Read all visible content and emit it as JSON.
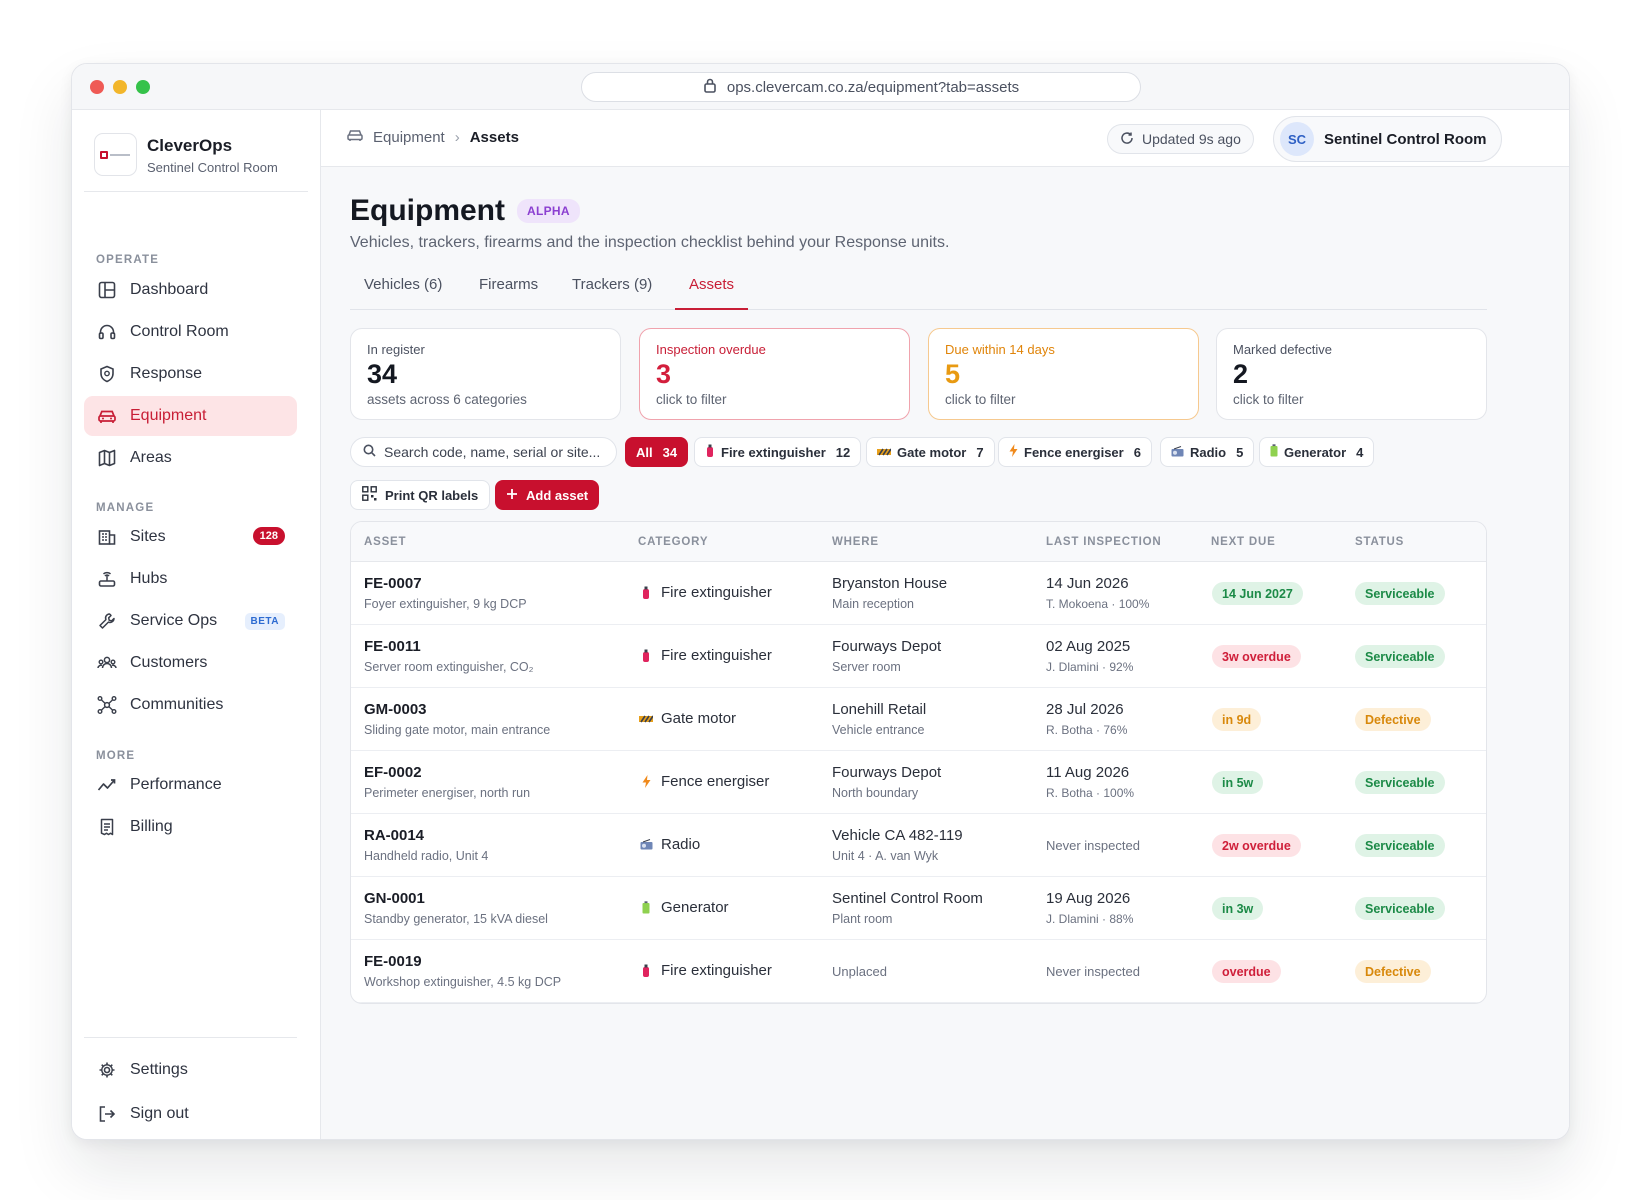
{
  "browser": {
    "url": "ops.clevercam.co.za/equipment?tab=assets"
  },
  "brand": {
    "name": "CleverOps",
    "subtitle": "Sentinel Control Room"
  },
  "sidebar": {
    "sections": {
      "operate": "OPERATE",
      "manage": "MANAGE",
      "more": "MORE"
    },
    "items": [
      {
        "label": "Dashboard",
        "icon": "dashboard-icon"
      },
      {
        "label": "Control Room",
        "icon": "headset-icon"
      },
      {
        "label": "Response",
        "icon": "shield-icon"
      },
      {
        "label": "Equipment",
        "icon": "car-icon",
        "active": true
      },
      {
        "label": "Areas",
        "icon": "map-icon"
      },
      {
        "label": "Sites",
        "icon": "building-icon",
        "count": "128"
      },
      {
        "label": "Hubs",
        "icon": "router-icon"
      },
      {
        "label": "Service Ops",
        "icon": "wrench-icon",
        "badge": "BETA"
      },
      {
        "label": "Customers",
        "icon": "users-icon"
      },
      {
        "label": "Communities",
        "icon": "network-icon"
      },
      {
        "label": "Performance",
        "icon": "trend-icon"
      },
      {
        "label": "Billing",
        "icon": "receipt-icon"
      },
      {
        "label": "Settings",
        "icon": "gear-icon"
      },
      {
        "label": "Sign out",
        "icon": "signout-icon"
      }
    ]
  },
  "topbar": {
    "breadcrumb": [
      "Equipment",
      "Assets"
    ],
    "updated": "Updated 9s ago",
    "user": {
      "initials": "SC",
      "name": "Sentinel Control Room"
    }
  },
  "page": {
    "title": "Equipment",
    "badge": "ALPHA",
    "subtitle": "Vehicles, trackers, firearms and the inspection checklist behind your Response units.",
    "tabs": [
      "Vehicles (6)",
      "Firearms",
      "Trackers (9)",
      "Assets"
    ],
    "active_tab": "Assets"
  },
  "stats": [
    {
      "label": "In register",
      "value": "34",
      "hint": "assets across 6 categories"
    },
    {
      "label": "Inspection overdue",
      "value": "3",
      "hint": "click to filter"
    },
    {
      "label": "Due within 14 days",
      "value": "5",
      "hint": "click to filter"
    },
    {
      "label": "Marked defective",
      "value": "2",
      "hint": "click to filter"
    }
  ],
  "search": {
    "placeholder": "Search code, name, serial or site..."
  },
  "filters": [
    {
      "label": "All",
      "count": "34"
    },
    {
      "label": "Fire extinguisher",
      "count": "12"
    },
    {
      "label": "Gate motor",
      "count": "7"
    },
    {
      "label": "Fence energiser",
      "count": "6"
    },
    {
      "label": "Radio",
      "count": "5"
    },
    {
      "label": "Generator",
      "count": "4"
    }
  ],
  "actions": {
    "print": "Print QR labels",
    "add": "Add asset"
  },
  "table": {
    "columns": [
      "ASSET",
      "CATEGORY",
      "WHERE",
      "LAST INSPECTION",
      "NEXT DUE",
      "STATUS"
    ],
    "rows": [
      {
        "code": "FE-0007",
        "desc": "Foyer extinguisher, 9 kg DCP",
        "category": "Fire extinguisher",
        "where": "Bryanston House",
        "where_sub": "Main reception",
        "inspected": "14 Jun 2026",
        "inspected_sub": "T. Mokoena · 100%",
        "due": "14 Jun 2027",
        "due_tone": "green",
        "status": "Serviceable",
        "status_tone": "green"
      },
      {
        "code": "FE-0011",
        "desc": "Server room extinguisher, CO₂",
        "category": "Fire extinguisher",
        "where": "Fourways Depot",
        "where_sub": "Server room",
        "inspected": "02 Aug 2025",
        "inspected_sub": "J. Dlamini · 92%",
        "due": "3w overdue",
        "due_tone": "red",
        "status": "Serviceable",
        "status_tone": "green"
      },
      {
        "code": "GM-0003",
        "desc": "Sliding gate motor, main entrance",
        "category": "Gate motor",
        "where": "Lonehill Retail",
        "where_sub": "Vehicle entrance",
        "inspected": "28 Jul 2026",
        "inspected_sub": "R. Botha · 76%",
        "due": "in 9d",
        "due_tone": "amber",
        "status": "Defective",
        "status_tone": "amber"
      },
      {
        "code": "EF-0002",
        "desc": "Perimeter energiser, north run",
        "category": "Fence energiser",
        "where": "Fourways Depot",
        "where_sub": "North boundary",
        "inspected": "11 Aug 2026",
        "inspected_sub": "R. Botha · 100%",
        "due": "in 5w",
        "due_tone": "green",
        "status": "Serviceable",
        "status_tone": "green"
      },
      {
        "code": "RA-0014",
        "desc": "Handheld radio, Unit 4",
        "category": "Radio",
        "where": "Vehicle CA 482-119",
        "where_sub": "Unit 4 · A. van Wyk",
        "inspected": "Never inspected",
        "inspected_sub": "",
        "due": "2w overdue",
        "due_tone": "red",
        "status": "Serviceable",
        "status_tone": "green"
      },
      {
        "code": "GN-0001",
        "desc": "Standby generator, 15 kVA diesel",
        "category": "Generator",
        "where": "Sentinel Control Room",
        "where_sub": "Plant room",
        "inspected": "19 Aug 2026",
        "inspected_sub": "J. Dlamini · 88%",
        "due": "in 3w",
        "due_tone": "green",
        "status": "Serviceable",
        "status_tone": "green"
      },
      {
        "code": "FE-0019",
        "desc": "Workshop extinguisher, 4.5 kg DCP",
        "category": "Fire extinguisher",
        "where": "Unplaced",
        "where_sub": "",
        "inspected": "Never inspected",
        "inspected_sub": "",
        "due": "overdue",
        "due_tone": "red",
        "status": "Defective",
        "status_tone": "amber"
      }
    ]
  },
  "colors": {
    "brand": "#c8102e",
    "green": "#1c8a47",
    "red": "#cf1f3a",
    "amber": "#d8880b",
    "purple": "#8b3fd1"
  }
}
